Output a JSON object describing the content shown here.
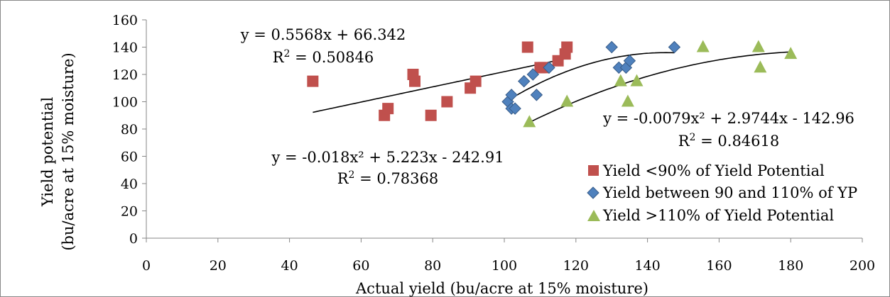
{
  "chart_data": {
    "type": "scatter",
    "title": "",
    "xlabel": "Actual yield (bu/acre at 15% moisture)",
    "ylabel_line1": "Yield potential",
    "ylabel_line2": "(bu/acre at 15% moisture)",
    "xlim": [
      0,
      200
    ],
    "ylim": [
      0,
      160
    ],
    "x_ticks": [
      "0",
      "20",
      "40",
      "60",
      "80",
      "100",
      "120",
      "140",
      "160",
      "180",
      "200"
    ],
    "y_ticks": [
      "0",
      "20",
      "40",
      "60",
      "80",
      "100",
      "120",
      "140",
      "160"
    ],
    "grid": false,
    "legend_position": "lower-right",
    "series": [
      {
        "name": "Yield <90% of Yield Potential",
        "marker": "square",
        "color": "#C0504D",
        "x": [
          46.5,
          66.5,
          67.5,
          74.5,
          75,
          79.5,
          84,
          90.5,
          92,
          106.5,
          110,
          111,
          115,
          117,
          117.5
        ],
        "y": [
          115,
          90,
          95,
          120,
          115,
          90,
          100,
          110,
          115,
          140,
          125,
          125,
          130,
          135,
          140
        ],
        "trend": {
          "kind": "linear",
          "coef": [
            66.342,
            0.5568
          ],
          "x_range": [
            46.5,
            117.5
          ]
        },
        "equation": "y = 0.5568x + 66.342",
        "r2_label": "R",
        "r2_sup": "2",
        "r2_value": " = 0.50846"
      },
      {
        "name": "Yield between 90 and 110% of YP",
        "marker": "diamond",
        "color": "#4F81BD",
        "x": [
          101,
          102,
          102,
          103,
          105.5,
          108,
          109,
          112.5,
          130,
          132,
          134,
          135,
          147.5
        ],
        "y": [
          100,
          105,
          95,
          95,
          115,
          120,
          105,
          125,
          140,
          125,
          125,
          130,
          140
        ],
        "trend": {
          "kind": "poly2",
          "coef": [
            -242.91,
            5.223,
            -0.018
          ],
          "x_range": [
            101,
            147.5
          ]
        },
        "equation": "y = -0.018x² + 5.223x - 242.91",
        "r2_label": "R",
        "r2_sup": "2",
        "r2_value": " = 0.78368"
      },
      {
        "name": "Yield >110% of Yield Potential",
        "marker": "triangle",
        "color": "#9BBB59",
        "x": [
          107,
          117.5,
          132.5,
          134.5,
          137,
          155.5,
          171,
          171.5,
          180
        ],
        "y": [
          85,
          100,
          115,
          100,
          115,
          140,
          140,
          125,
          135
        ],
        "trend": {
          "kind": "poly2",
          "coef": [
            -142.96,
            2.9744,
            -0.0079
          ],
          "x_range": [
            107,
            180
          ]
        },
        "equation": "y = -0.0079x² + 2.9744x - 142.96",
        "r2_label": "R",
        "r2_sup": "2",
        "r2_value": " = 0.84618"
      }
    ]
  }
}
